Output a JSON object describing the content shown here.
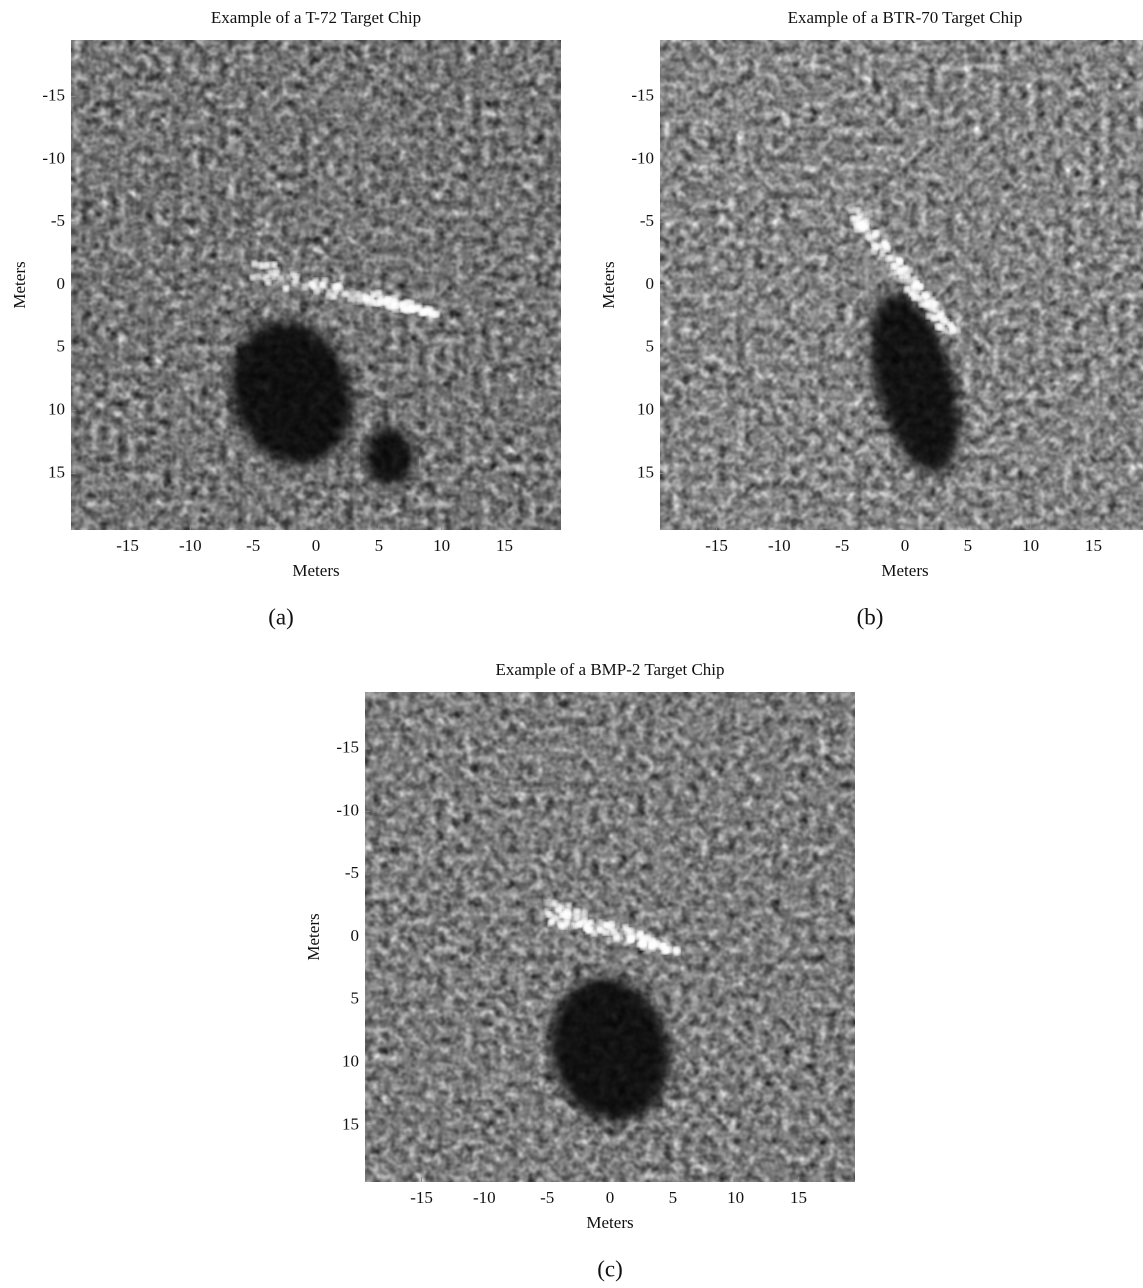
{
  "chart_data": [
    {
      "type": "image",
      "title": "Example of a T-72 Target Chip",
      "xlabel": "Meters",
      "ylabel": "Meters",
      "caption": "(a)",
      "xlim": [
        -19.5,
        19.5
      ],
      "ylim": [
        -19.5,
        19.5
      ],
      "y_inverted": true,
      "colormap": "gray",
      "xticks": [
        -15,
        -10,
        -5,
        0,
        5,
        10,
        15
      ],
      "yticks": [
        -15,
        -10,
        -5,
        0,
        5,
        10,
        15
      ]
    },
    {
      "type": "image",
      "title": "Example of a BTR-70 Target Chip",
      "xlabel": "Meters",
      "ylabel": "Meters",
      "caption": "(b)",
      "xlim": [
        -19.5,
        19.5
      ],
      "ylim": [
        -19.5,
        19.5
      ],
      "y_inverted": true,
      "colormap": "gray",
      "xticks": [
        -15,
        -10,
        -5,
        0,
        5,
        10,
        15
      ],
      "yticks": [
        -15,
        -10,
        -5,
        0,
        5,
        10,
        15
      ]
    },
    {
      "type": "image",
      "title": "Example of a BMP-2 Target Chip",
      "xlabel": "Meters",
      "ylabel": "Meters",
      "caption": "(c)",
      "xlim": [
        -19.5,
        19.5
      ],
      "ylim": [
        -19.5,
        19.5
      ],
      "y_inverted": true,
      "colormap": "gray",
      "xticks": [
        -15,
        -10,
        -5,
        0,
        5,
        10,
        15
      ],
      "yticks": [
        -15,
        -10,
        -5,
        0,
        5,
        10,
        15
      ]
    }
  ]
}
